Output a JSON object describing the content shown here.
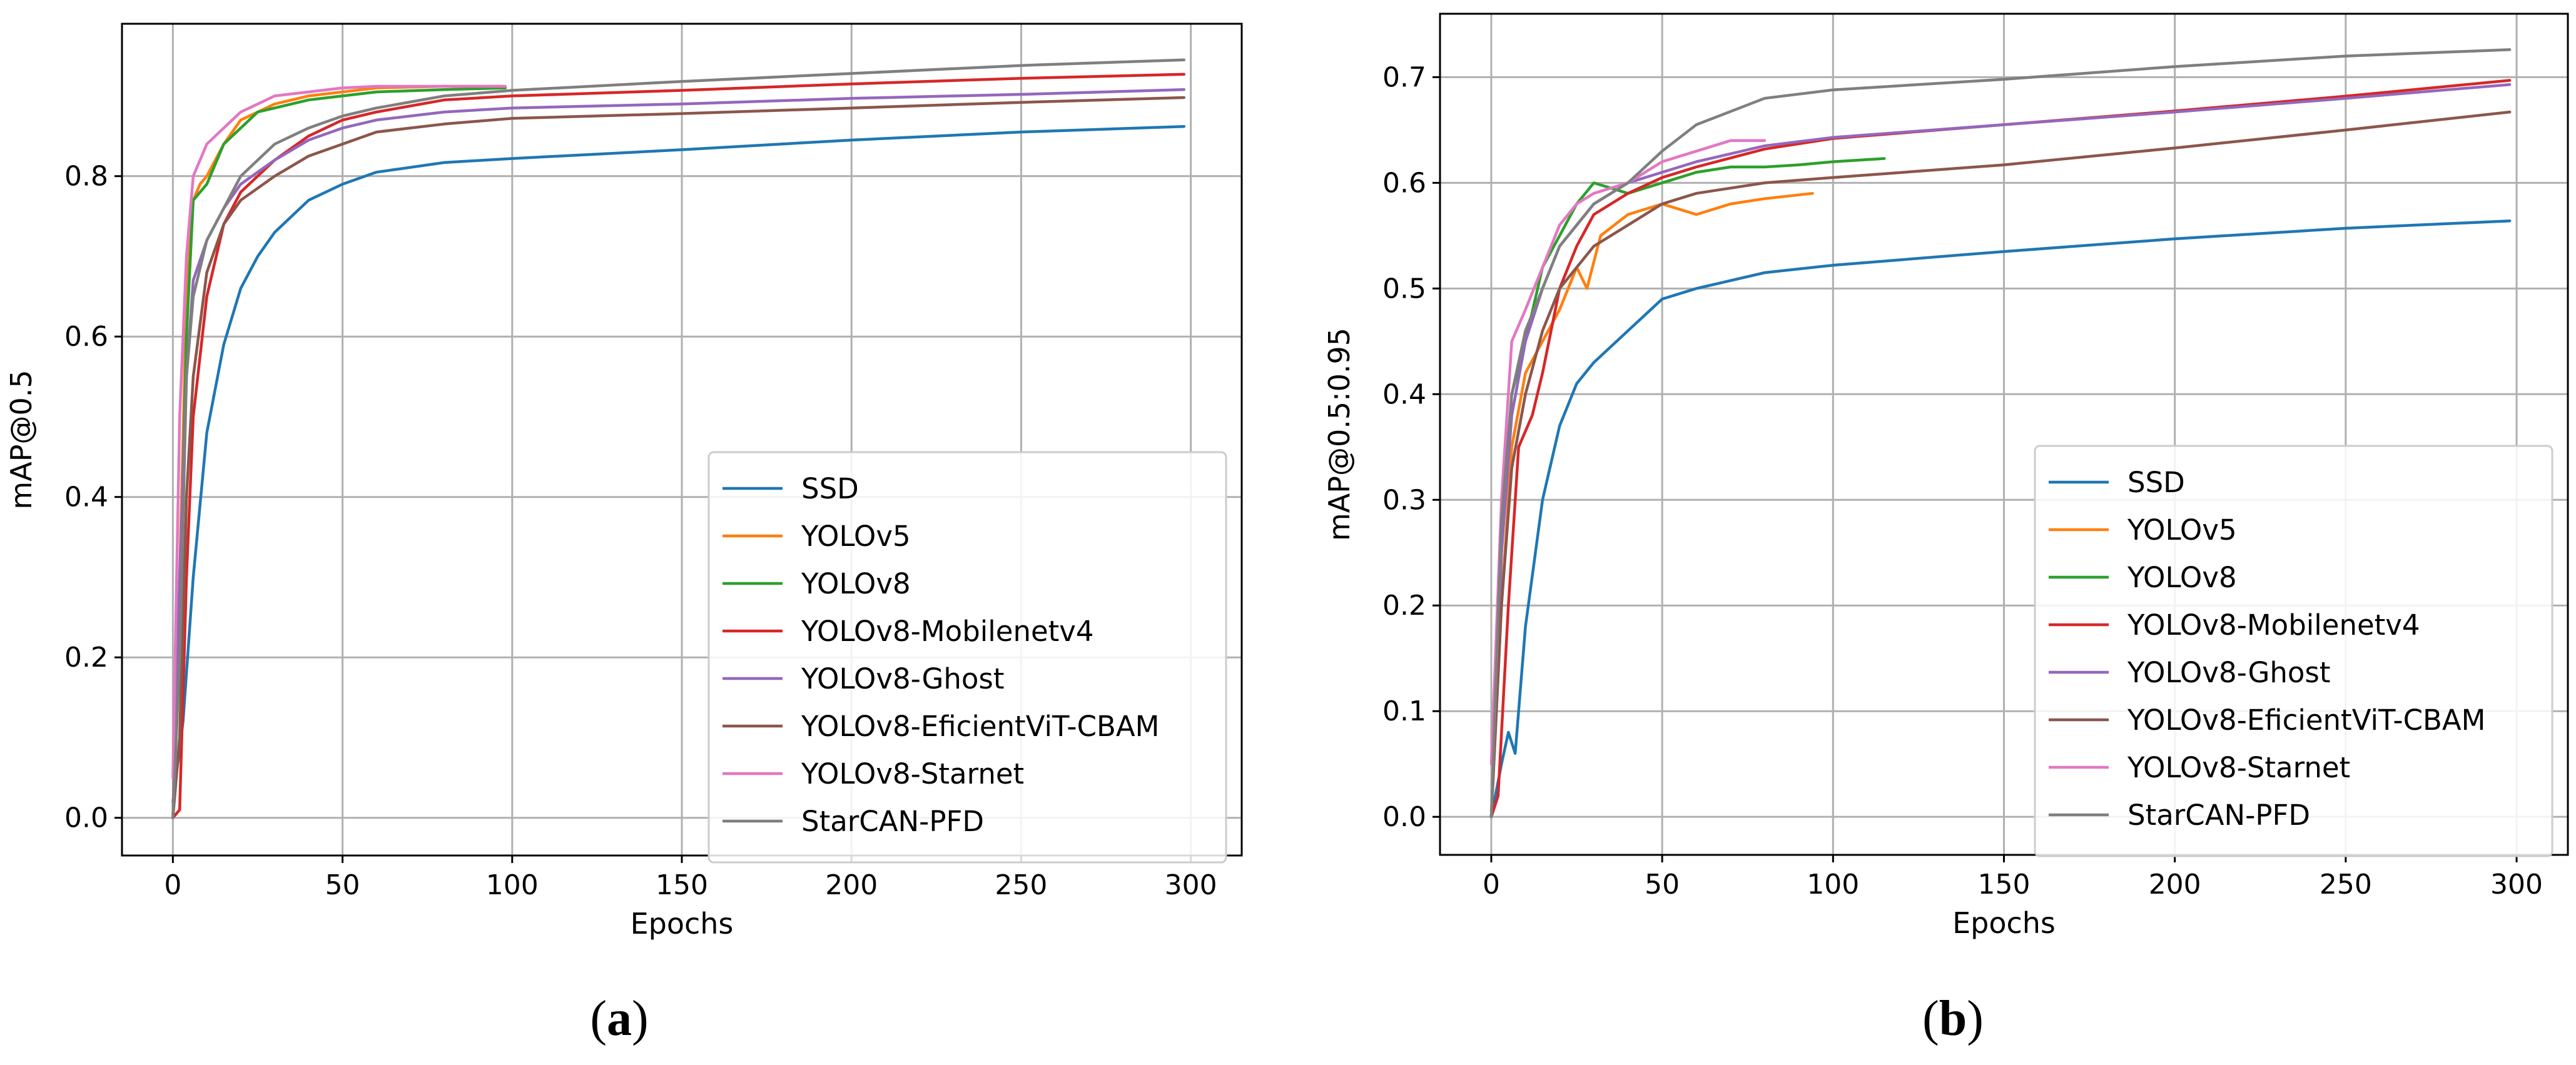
{
  "figure": {
    "captions": [
      "a",
      "b"
    ]
  },
  "series_styles": [
    {
      "name": "SSD",
      "color": "#1f77b4"
    },
    {
      "name": "YOLOv5",
      "color": "#ff7f0e"
    },
    {
      "name": "YOLOv8",
      "color": "#2ca02c"
    },
    {
      "name": "YOLOv8-Mobilenetv4",
      "color": "#d62728"
    },
    {
      "name": "YOLOv8-Ghost",
      "color": "#9467bd"
    },
    {
      "name": "YOLOv8-EficientViT-CBAM",
      "color": "#8c564b"
    },
    {
      "name": "YOLOv8-Starnet",
      "color": "#e377c2"
    },
    {
      "name": "StarCAN-PFD",
      "color": "#7f7f7f"
    }
  ],
  "chart_data": [
    {
      "type": "line",
      "panel": "a",
      "title": "",
      "xlabel": "Epochs",
      "ylabel": "mAP@0.5",
      "xlim": [
        -15,
        315
      ],
      "ylim": [
        -0.047,
        0.99
      ],
      "xticks": [
        0,
        50,
        100,
        150,
        200,
        250,
        300
      ],
      "yticks": [
        0.0,
        0.2,
        0.4,
        0.6,
        0.8
      ],
      "ytick_labels": [
        "0.0",
        "0.2",
        "0.4",
        "0.6",
        "0.8"
      ],
      "grid": true,
      "legend": "lower-right",
      "series": [
        {
          "name": "SSD",
          "x": [
            0,
            3,
            6,
            10,
            15,
            20,
            25,
            30,
            40,
            50,
            60,
            80,
            100,
            150,
            200,
            250,
            298
          ],
          "y": [
            0.02,
            0.12,
            0.3,
            0.48,
            0.59,
            0.66,
            0.7,
            0.73,
            0.77,
            0.79,
            0.805,
            0.817,
            0.822,
            0.833,
            0.845,
            0.855,
            0.862
          ]
        },
        {
          "name": "YOLOv5",
          "x": [
            0,
            2,
            4,
            6,
            8,
            10,
            15,
            20,
            25,
            30,
            40,
            50,
            60,
            80,
            97
          ],
          "y": [
            0.0,
            0.3,
            0.65,
            0.77,
            0.79,
            0.8,
            0.84,
            0.87,
            0.88,
            0.89,
            0.9,
            0.905,
            0.91,
            0.912,
            0.912
          ]
        },
        {
          "name": "YOLOv8",
          "x": [
            0,
            2,
            4,
            6,
            8,
            10,
            15,
            20,
            25,
            30,
            40,
            50,
            60,
            80,
            98
          ],
          "y": [
            0.0,
            0.25,
            0.6,
            0.77,
            0.78,
            0.79,
            0.84,
            0.86,
            0.88,
            0.885,
            0.895,
            0.9,
            0.905,
            0.908,
            0.91
          ]
        },
        {
          "name": "YOLOv8-Mobilenetv4",
          "x": [
            0,
            2,
            4,
            6,
            10,
            15,
            20,
            30,
            40,
            50,
            60,
            80,
            100,
            150,
            200,
            250,
            298
          ],
          "y": [
            0.0,
            0.01,
            0.3,
            0.5,
            0.65,
            0.74,
            0.78,
            0.82,
            0.85,
            0.87,
            0.88,
            0.895,
            0.9,
            0.907,
            0.915,
            0.922,
            0.927
          ]
        },
        {
          "name": "YOLOv8-Ghost",
          "x": [
            0,
            2,
            4,
            6,
            10,
            15,
            20,
            30,
            40,
            50,
            60,
            80,
            100,
            150,
            200,
            250,
            298
          ],
          "y": [
            0.0,
            0.3,
            0.55,
            0.67,
            0.72,
            0.76,
            0.79,
            0.82,
            0.845,
            0.86,
            0.87,
            0.88,
            0.885,
            0.89,
            0.897,
            0.902,
            0.908
          ]
        },
        {
          "name": "YOLOv8-EficientViT-CBAM",
          "x": [
            0,
            2,
            4,
            6,
            10,
            15,
            20,
            30,
            40,
            50,
            60,
            80,
            100,
            150,
            200,
            250,
            298
          ],
          "y": [
            0.0,
            0.1,
            0.4,
            0.55,
            0.68,
            0.74,
            0.77,
            0.8,
            0.825,
            0.84,
            0.855,
            0.865,
            0.872,
            0.878,
            0.885,
            0.892,
            0.898
          ]
        },
        {
          "name": "YOLOv8-Starnet",
          "x": [
            0,
            2,
            4,
            6,
            8,
            10,
            15,
            20,
            25,
            30,
            40,
            50,
            60,
            80,
            98
          ],
          "y": [
            0.05,
            0.5,
            0.7,
            0.8,
            0.82,
            0.84,
            0.86,
            0.88,
            0.89,
            0.9,
            0.905,
            0.91,
            0.912,
            0.912,
            0.912
          ]
        },
        {
          "name": "StarCAN-PFD",
          "x": [
            0,
            2,
            4,
            6,
            10,
            15,
            20,
            30,
            40,
            50,
            60,
            80,
            100,
            150,
            200,
            250,
            298
          ],
          "y": [
            0.0,
            0.2,
            0.55,
            0.65,
            0.72,
            0.76,
            0.8,
            0.84,
            0.86,
            0.875,
            0.885,
            0.9,
            0.907,
            0.918,
            0.928,
            0.938,
            0.945
          ]
        }
      ]
    },
    {
      "type": "line",
      "panel": "b",
      "title": "",
      "xlabel": "Epochs",
      "ylabel": "mAP@0.5:0.95",
      "xlim": [
        -15,
        315
      ],
      "ylim": [
        -0.036,
        0.76
      ],
      "xticks": [
        0,
        50,
        100,
        150,
        200,
        250,
        300
      ],
      "yticks": [
        0.0,
        0.1,
        0.2,
        0.3,
        0.4,
        0.5,
        0.6,
        0.7
      ],
      "ytick_labels": [
        "0.0",
        "0.1",
        "0.2",
        "0.3",
        "0.4",
        "0.5",
        "0.6",
        "0.7"
      ],
      "grid": true,
      "legend": "lower-right",
      "series": [
        {
          "name": "SSD",
          "x": [
            0,
            3,
            5,
            7,
            10,
            15,
            20,
            25,
            30,
            40,
            50,
            60,
            80,
            100,
            150,
            200,
            250,
            298
          ],
          "y": [
            0.0,
            0.05,
            0.08,
            0.06,
            0.18,
            0.3,
            0.37,
            0.41,
            0.43,
            0.46,
            0.49,
            0.5,
            0.515,
            0.522,
            0.535,
            0.547,
            0.557,
            0.564
          ]
        },
        {
          "name": "YOLOv5",
          "x": [
            0,
            3,
            6,
            10,
            15,
            20,
            25,
            28,
            32,
            40,
            50,
            60,
            70,
            80,
            94
          ],
          "y": [
            0.0,
            0.2,
            0.35,
            0.42,
            0.45,
            0.48,
            0.52,
            0.5,
            0.55,
            0.57,
            0.58,
            0.57,
            0.58,
            0.585,
            0.59
          ]
        },
        {
          "name": "YOLOv8",
          "x": [
            0,
            3,
            6,
            10,
            15,
            20,
            25,
            30,
            40,
            50,
            60,
            70,
            80,
            90,
            100,
            115
          ],
          "y": [
            0.0,
            0.25,
            0.4,
            0.45,
            0.52,
            0.55,
            0.58,
            0.6,
            0.59,
            0.6,
            0.61,
            0.615,
            0.615,
            0.617,
            0.62,
            0.623
          ]
        },
        {
          "name": "YOLOv8-Mobilenetv4",
          "x": [
            0,
            2,
            5,
            8,
            12,
            15,
            20,
            25,
            30,
            40,
            50,
            60,
            80,
            100,
            150,
            200,
            250,
            298
          ],
          "y": [
            0.0,
            0.02,
            0.2,
            0.35,
            0.38,
            0.42,
            0.5,
            0.54,
            0.57,
            0.59,
            0.605,
            0.615,
            0.632,
            0.642,
            0.655,
            0.668,
            0.682,
            0.697
          ]
        },
        {
          "name": "YOLOv8-Ghost",
          "x": [
            0,
            3,
            6,
            10,
            15,
            20,
            30,
            40,
            50,
            60,
            80,
            100,
            150,
            200,
            250,
            298
          ],
          "y": [
            0.0,
            0.25,
            0.38,
            0.45,
            0.5,
            0.54,
            0.58,
            0.6,
            0.61,
            0.62,
            0.635,
            0.643,
            0.655,
            0.667,
            0.68,
            0.693
          ]
        },
        {
          "name": "YOLOv8-EficientViT-CBAM",
          "x": [
            0,
            3,
            6,
            10,
            15,
            20,
            30,
            40,
            50,
            60,
            80,
            100,
            150,
            200,
            250,
            298
          ],
          "y": [
            0.0,
            0.2,
            0.33,
            0.4,
            0.46,
            0.5,
            0.54,
            0.56,
            0.58,
            0.59,
            0.6,
            0.605,
            0.617,
            0.633,
            0.65,
            0.667
          ]
        },
        {
          "name": "YOLOv8-Starnet",
          "x": [
            0,
            3,
            6,
            10,
            15,
            20,
            25,
            30,
            40,
            50,
            60,
            70,
            80
          ],
          "y": [
            0.05,
            0.3,
            0.45,
            0.48,
            0.52,
            0.56,
            0.58,
            0.59,
            0.6,
            0.62,
            0.63,
            0.64,
            0.64
          ]
        },
        {
          "name": "StarCAN-PFD",
          "x": [
            0,
            3,
            6,
            10,
            15,
            20,
            30,
            40,
            50,
            60,
            80,
            100,
            150,
            200,
            250,
            298
          ],
          "y": [
            0.0,
            0.28,
            0.4,
            0.46,
            0.5,
            0.54,
            0.58,
            0.6,
            0.63,
            0.655,
            0.68,
            0.688,
            0.698,
            0.71,
            0.72,
            0.726
          ]
        }
      ]
    }
  ]
}
